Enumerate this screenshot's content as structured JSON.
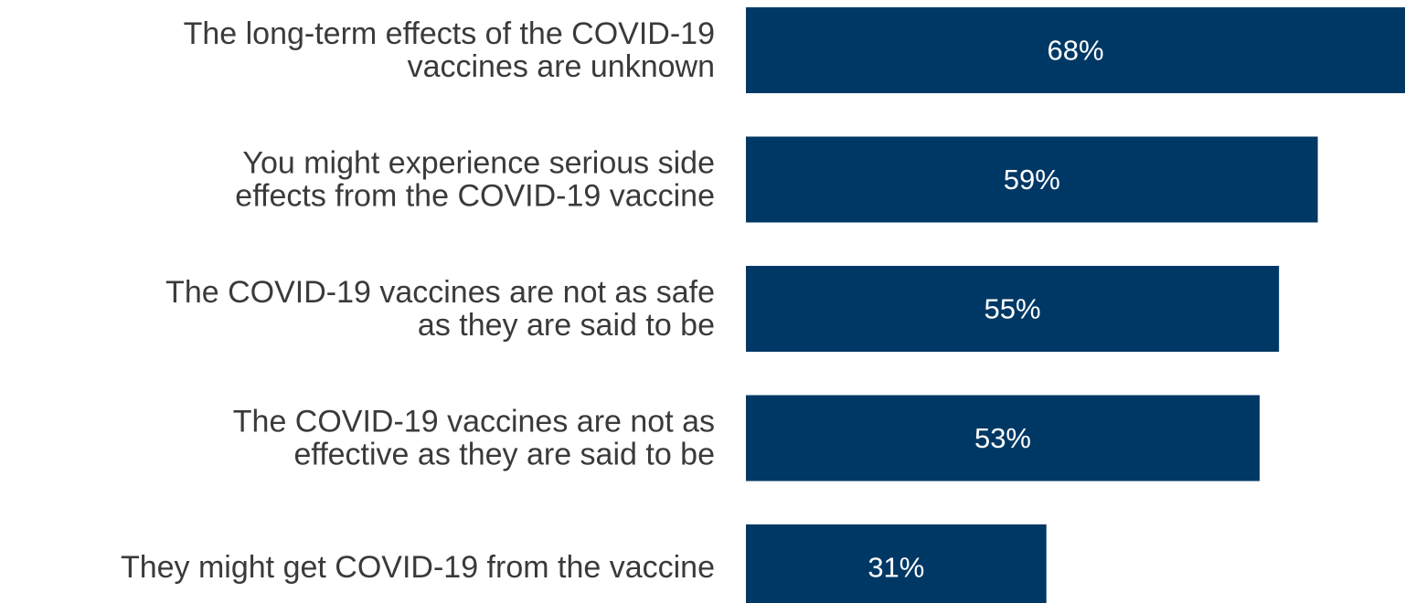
{
  "chart_data": {
    "type": "bar",
    "orientation": "horizontal",
    "categories": [
      [
        "The long-term effects of the COVID-19",
        "vaccines are unknown"
      ],
      [
        "You might experience serious side",
        "effects from the COVID-19 vaccine"
      ],
      [
        "The COVID-19 vaccines are not as safe",
        "as they are said to be"
      ],
      [
        "The COVID-19 vaccines are not as",
        "effective as they are said to be"
      ],
      [
        "They might get COVID-19 from the vaccine"
      ]
    ],
    "values": [
      68,
      59,
      55,
      53,
      31
    ],
    "value_labels": [
      "68%",
      "59%",
      "55%",
      "53%",
      "31%"
    ],
    "xlim": [
      0,
      68
    ],
    "grid": false,
    "legend": "none",
    "bar_color": "#003865",
    "label_color": "#3a3a3a",
    "value_label_color": "#ffffff"
  }
}
